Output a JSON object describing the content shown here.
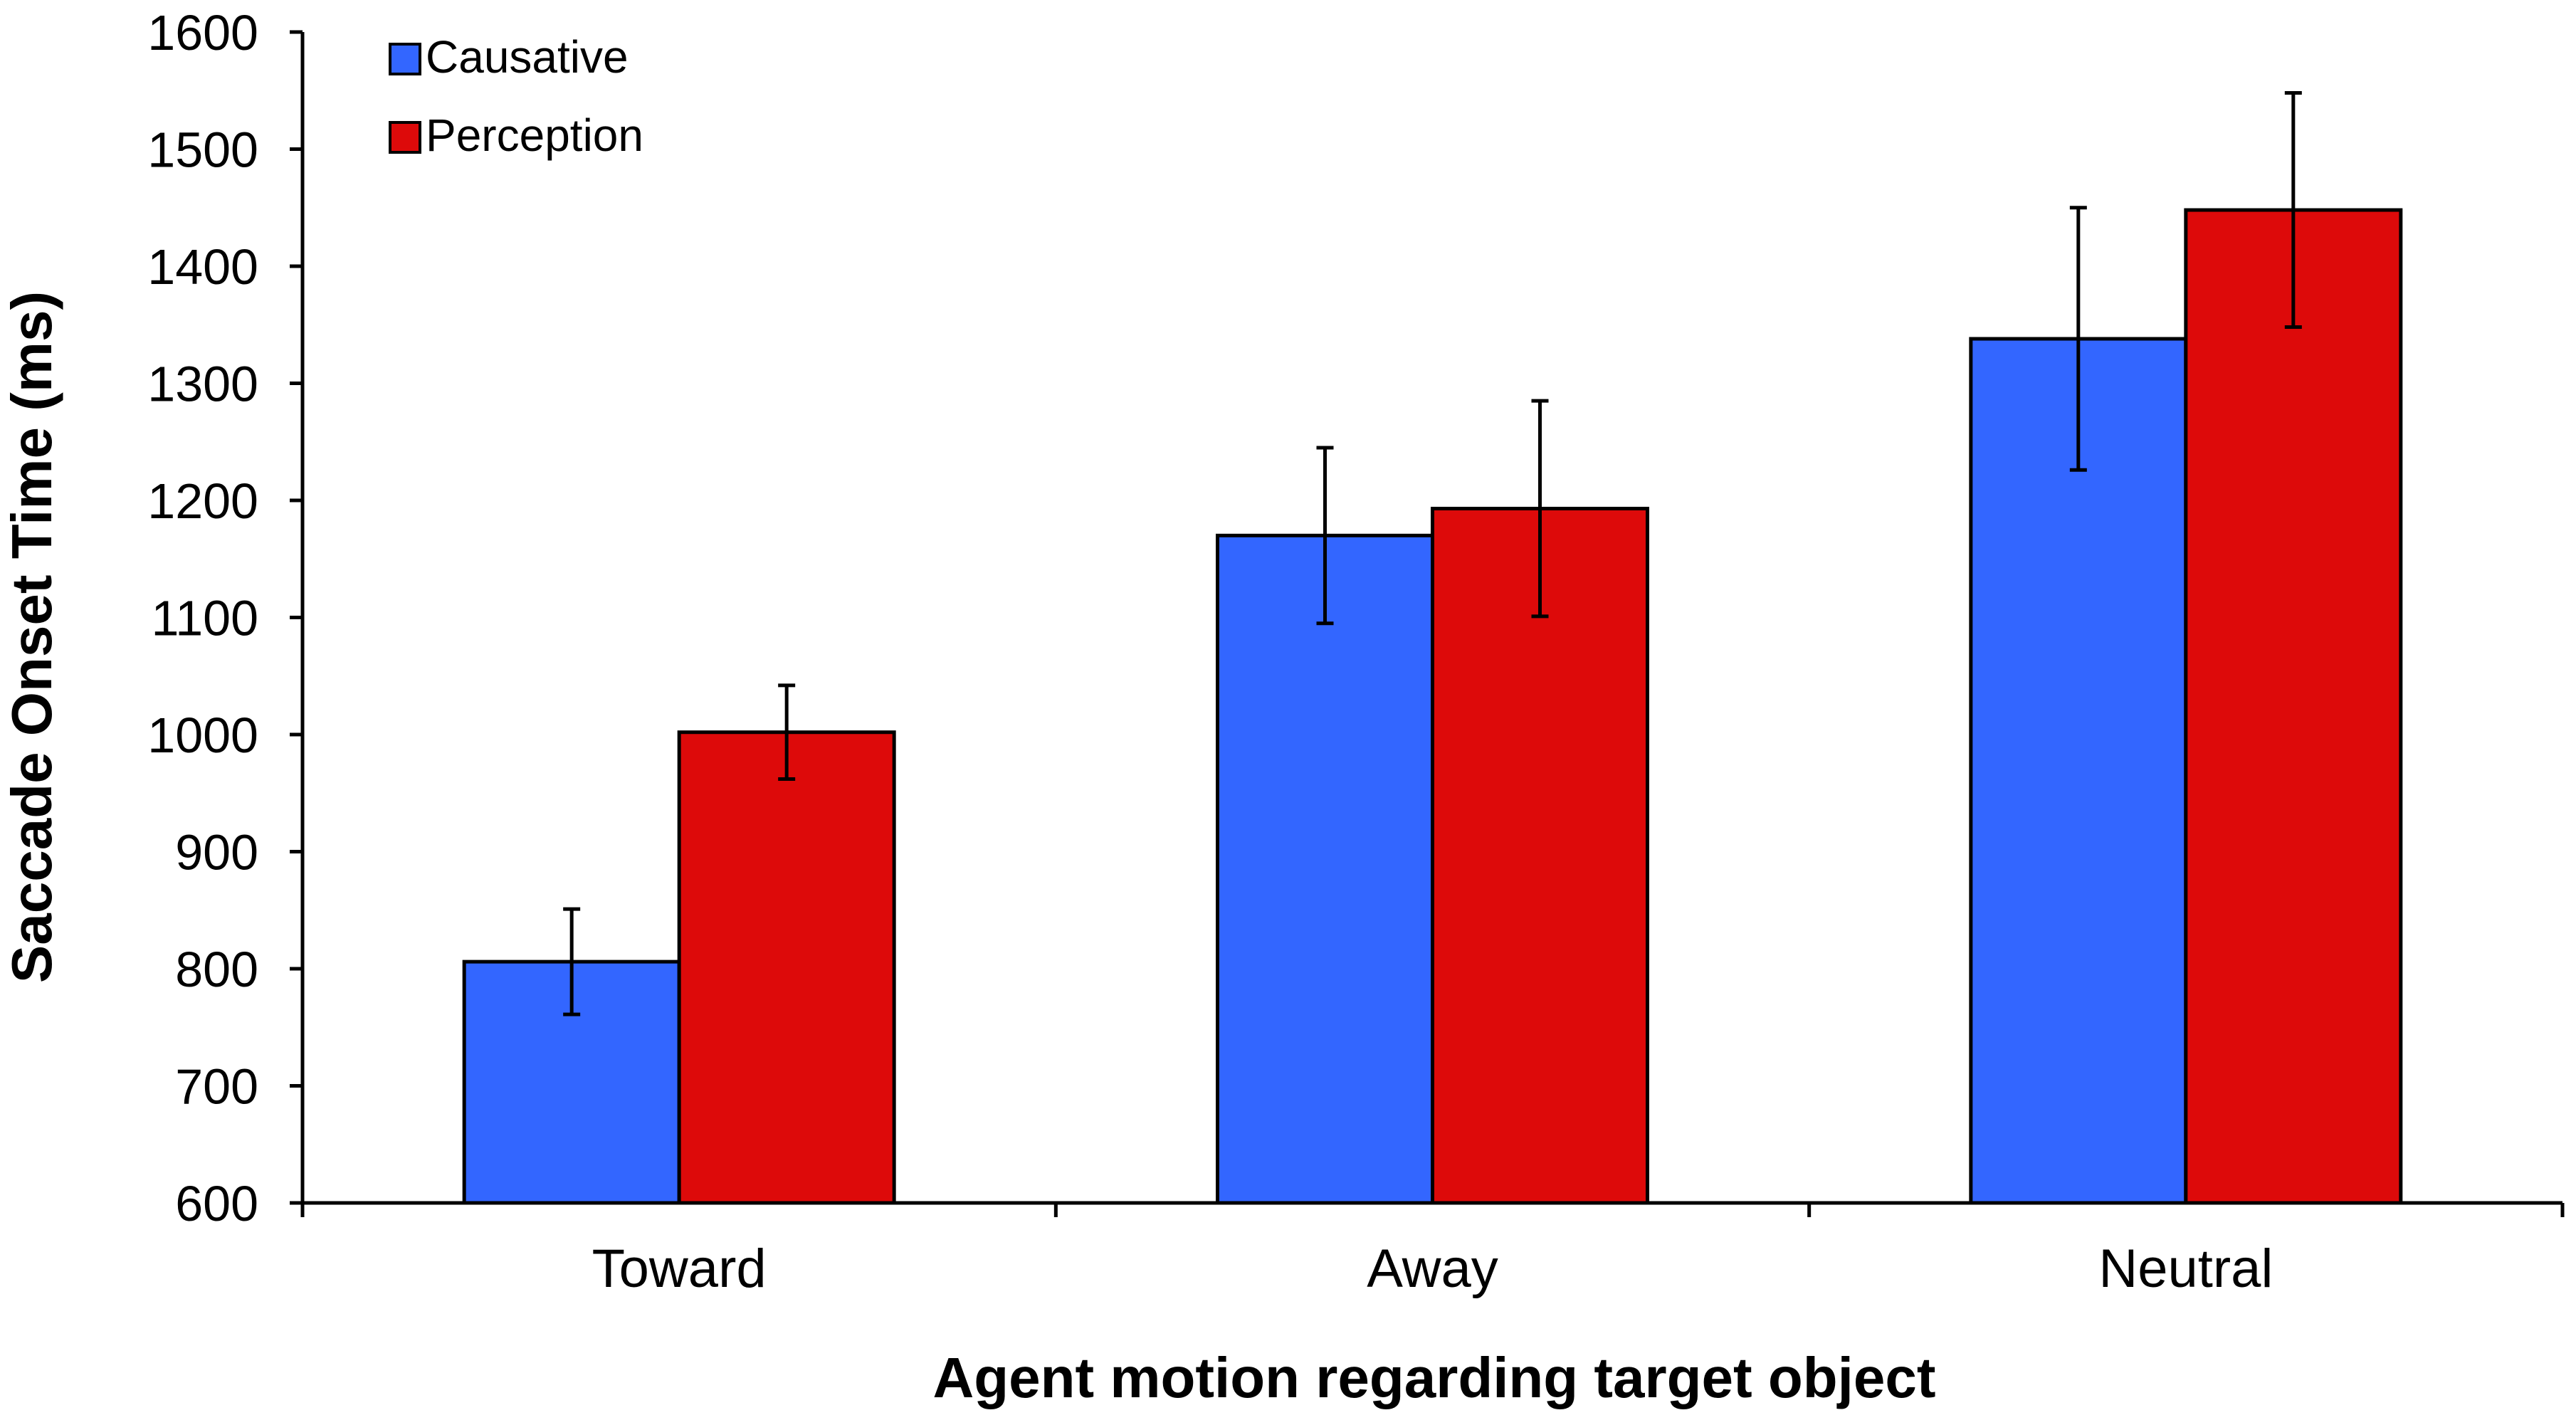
{
  "chart_data": {
    "type": "bar",
    "title": "",
    "xlabel": "Agent motion regarding target object",
    "ylabel": "Saccade Onset Time (ms)",
    "ylim": [
      600,
      1600
    ],
    "yticks": [
      600,
      700,
      800,
      900,
      1000,
      1100,
      1200,
      1300,
      1400,
      1500,
      1600
    ],
    "categories": [
      "Toward",
      "Away",
      "Neutral"
    ],
    "series": [
      {
        "name": "Causative",
        "color": "#3366ff",
        "values": [
          806,
          1170,
          1338
        ],
        "errors": [
          45,
          75,
          112
        ]
      },
      {
        "name": "Perception",
        "color": "#dd0a0a",
        "values": [
          1002,
          1193,
          1448
        ],
        "errors": [
          40,
          92,
          100
        ]
      }
    ],
    "legend_position": "top-left",
    "grid": false
  }
}
